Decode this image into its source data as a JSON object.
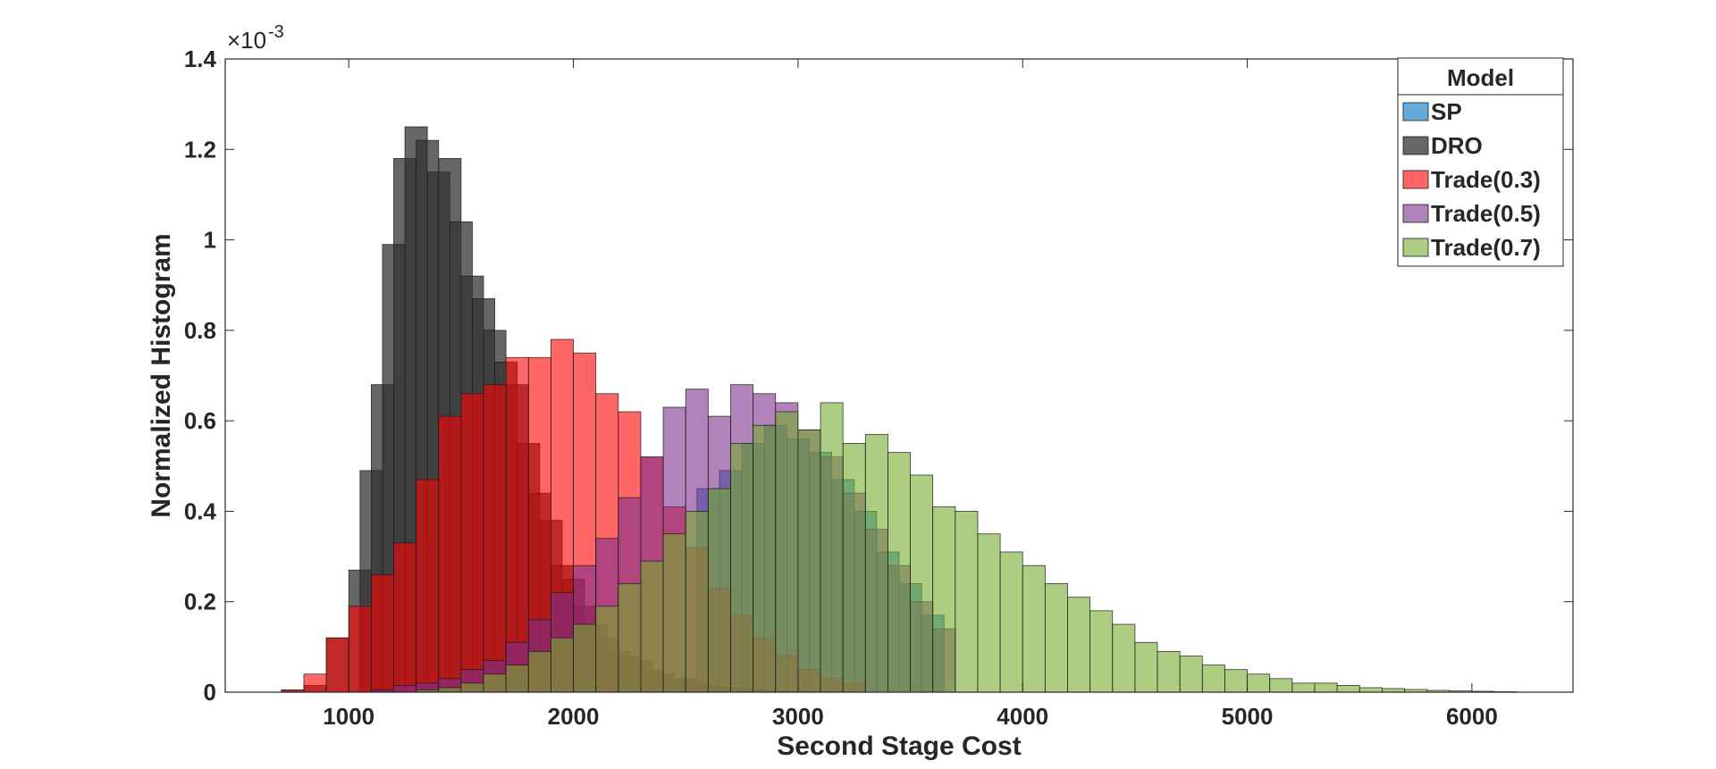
{
  "chart_data": {
    "type": "bar",
    "xlabel": "Second Stage Cost",
    "ylabel": "Normalized Histogram",
    "y_exponent_label": "×10",
    "y_exponent_power": "-3",
    "xlim": [
      450,
      6450
    ],
    "ylim": [
      0,
      0.0014
    ],
    "xticks": [
      1000,
      2000,
      3000,
      4000,
      5000,
      6000
    ],
    "xtick_labels": [
      "1000",
      "2000",
      "3000",
      "4000",
      "5000",
      "6000"
    ],
    "yticks": [
      0,
      0.0002,
      0.0004,
      0.0006,
      0.0008,
      0.001,
      0.0012,
      0.0014
    ],
    "ytick_labels": [
      "0",
      "0.2",
      "0.4",
      "0.6",
      "0.8",
      "1",
      "1.2",
      "1.4"
    ],
    "bin_width": 100,
    "grid": false,
    "legend": {
      "title": "Model",
      "placement": "top-right"
    },
    "series": [
      {
        "name": "SP",
        "color": "#0072BD",
        "opacity": 0.6,
        "x": [
          2600,
          2700,
          2800,
          2900,
          3000,
          3100,
          3200,
          3300,
          3400,
          3500,
          3600
        ],
        "values": [
          0.00045,
          0.00049,
          0.00055,
          0.00059,
          0.00056,
          0.00053,
          0.00047,
          0.0004,
          0.00031,
          0.00024,
          0.00017
        ]
      },
      {
        "name": "DRO",
        "color": "#333333",
        "opacity": 0.75,
        "x": [
          750,
          850,
          950,
          1050,
          1100,
          1150,
          1200,
          1250,
          1300,
          1350,
          1400,
          1450,
          1500,
          1550,
          1600,
          1650,
          1700,
          1750,
          1800,
          1850,
          1900,
          1950,
          2000,
          2050,
          2100,
          2150,
          2200,
          2250,
          2300,
          2350,
          2400,
          2450,
          2500,
          2550,
          2600,
          2650,
          2700,
          2750,
          2800,
          2850,
          2900,
          2950,
          3000,
          3050,
          3100,
          3150,
          3200
        ],
        "values": [
          5e-06,
          1.5e-05,
          0.00012,
          0.00027,
          0.00049,
          0.00068,
          0.00099,
          0.00118,
          0.00125,
          0.00122,
          0.00115,
          0.00118,
          0.00104,
          0.00092,
          0.00087,
          0.0008,
          0.00073,
          0.00068,
          0.00055,
          0.00044,
          0.00038,
          0.00028,
          0.00025,
          0.00019,
          0.00015,
          0.00012,
          9e-05,
          8e-05,
          7e-05,
          5e-05,
          4e-05,
          3e-05,
          3e-05,
          2e-05,
          1.5e-05,
          1e-05,
          1e-05,
          8e-06,
          6e-06,
          5e-06,
          4e-06,
          3e-06,
          3e-06,
          2e-06,
          2e-06,
          1e-06,
          1e-06
        ]
      },
      {
        "name": "Trade(0.3)",
        "color": "#FF0000",
        "opacity": 0.6,
        "x": [
          750,
          850,
          950,
          1050,
          1150,
          1250,
          1350,
          1450,
          1550,
          1650,
          1750,
          1850,
          1950,
          2050,
          2150,
          2250,
          2350,
          2450,
          2550,
          2650,
          2750,
          2850,
          2950,
          3050,
          3150,
          3250
        ],
        "values": [
          5e-06,
          4e-05,
          0.00012,
          0.00019,
          0.00026,
          0.00033,
          0.00047,
          0.00061,
          0.00066,
          0.00068,
          0.00074,
          0.00074,
          0.00078,
          0.00075,
          0.00066,
          0.00062,
          0.00052,
          0.00041,
          0.00032,
          0.00023,
          0.00017,
          0.00012,
          8e-05,
          5e-05,
          3e-05,
          2e-05
        ]
      },
      {
        "name": "Trade(0.5)",
        "color": "#7E2F8E",
        "opacity": 0.6,
        "x": [
          1150,
          1250,
          1350,
          1450,
          1550,
          1650,
          1750,
          1850,
          1950,
          2050,
          2150,
          2250,
          2350,
          2450,
          2550,
          2650,
          2750,
          2850,
          2950,
          3050,
          3150,
          3250,
          3350,
          3450,
          3550,
          3650
        ],
        "values": [
          5e-06,
          1.5e-05,
          2e-05,
          3e-05,
          5e-05,
          7e-05,
          0.00011,
          0.00016,
          0.00022,
          0.00028,
          0.00034,
          0.00043,
          0.00052,
          0.00063,
          0.00067,
          0.00061,
          0.00068,
          0.00066,
          0.00064,
          0.00058,
          0.00052,
          0.00044,
          0.00036,
          0.00028,
          0.0002,
          0.00014
        ]
      },
      {
        "name": "Trade(0.7)",
        "color": "#77AC30",
        "opacity": 0.6,
        "x": [
          1350,
          1450,
          1550,
          1650,
          1750,
          1850,
          1950,
          2050,
          2150,
          2250,
          2350,
          2450,
          2550,
          2650,
          2750,
          2850,
          2950,
          3050,
          3150,
          3250,
          3350,
          3450,
          3550,
          3650,
          3750,
          3850,
          3950,
          4050,
          4150,
          4250,
          4350,
          4450,
          4550,
          4650,
          4750,
          4850,
          4950,
          5050,
          5150,
          5250,
          5350,
          5450,
          5550,
          5650,
          5750,
          5850,
          5950,
          6050,
          6150
        ],
        "values": [
          5e-06,
          1e-05,
          2e-05,
          4e-05,
          6e-05,
          9e-05,
          0.00012,
          0.00015,
          0.00019,
          0.00024,
          0.00029,
          0.00035,
          0.0004,
          0.00045,
          0.00055,
          0.00059,
          0.00062,
          0.00058,
          0.00064,
          0.00055,
          0.00057,
          0.00053,
          0.00048,
          0.00041,
          0.0004,
          0.00035,
          0.00031,
          0.00028,
          0.00024,
          0.00021,
          0.00018,
          0.00015,
          0.00011,
          9e-05,
          8e-05,
          6e-05,
          5e-05,
          4e-05,
          3e-05,
          2e-05,
          2e-05,
          1.5e-05,
          1e-05,
          8e-06,
          6e-06,
          4e-06,
          3e-06,
          2e-06,
          1e-06
        ]
      }
    ]
  }
}
